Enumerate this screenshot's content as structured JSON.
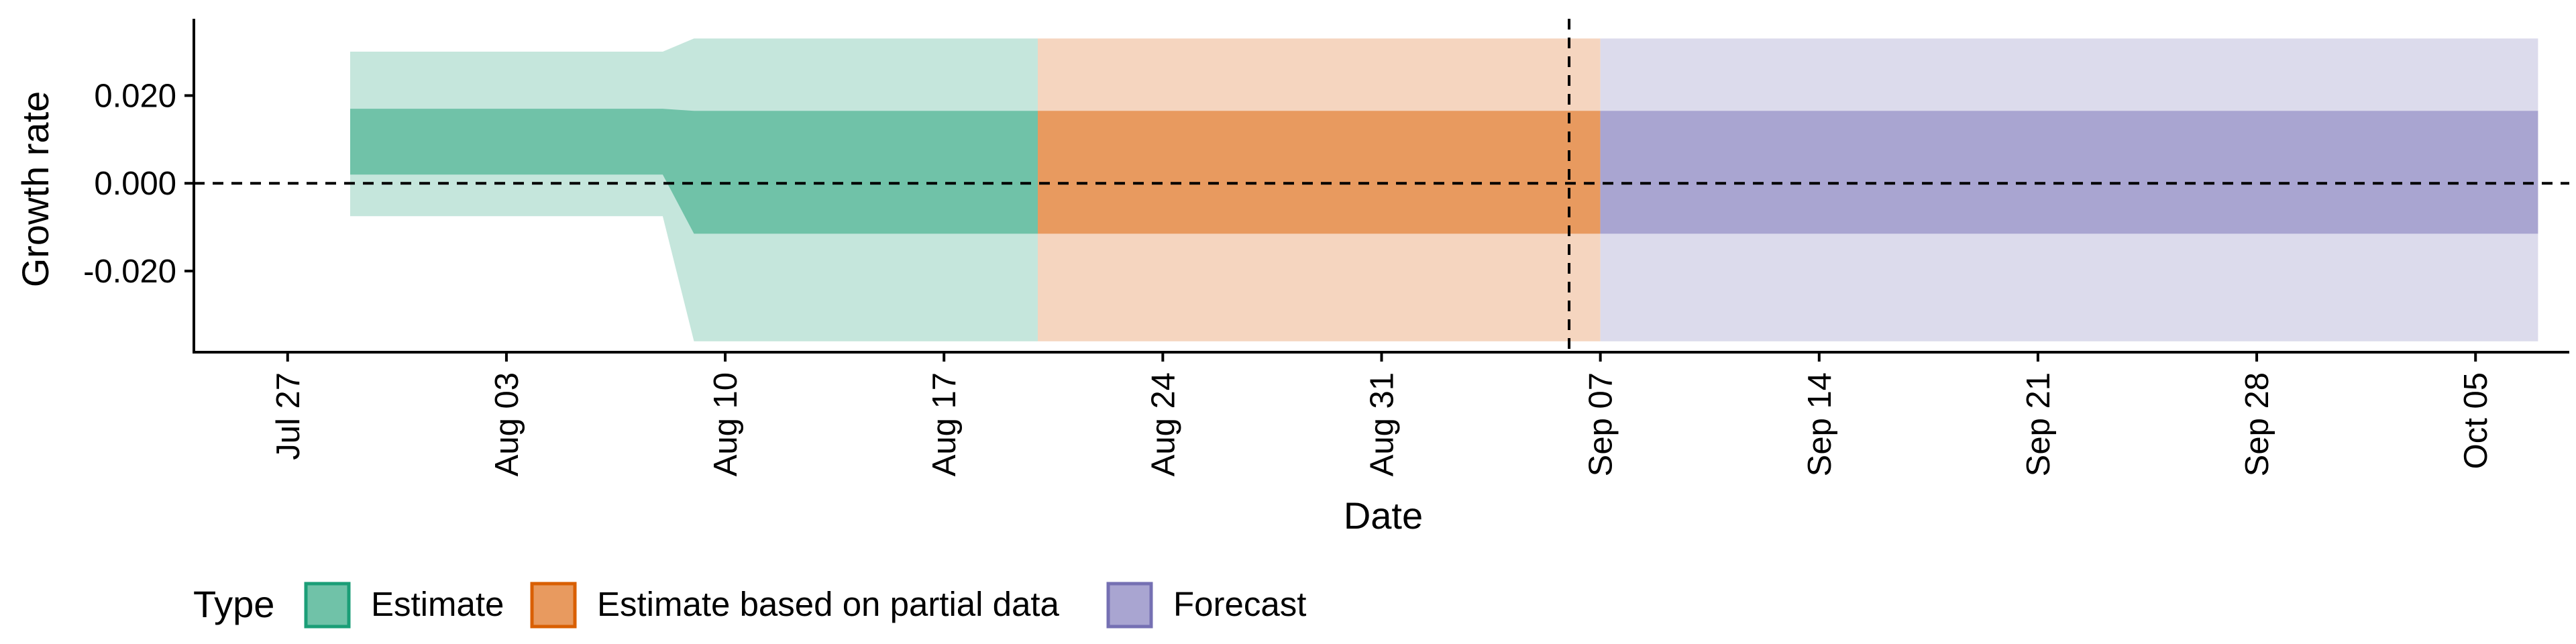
{
  "chart_data": {
    "type": "area",
    "title": "",
    "xlabel": "Date",
    "ylabel": "Growth rate",
    "ylim": [
      -0.0385,
      0.0375
    ],
    "xlim": [
      "2020-07-24",
      "2020-10-08"
    ],
    "y_ticks": [
      -0.02,
      0.0,
      0.02
    ],
    "y_tick_labels": [
      "-0.020",
      "0.000",
      "0.020"
    ],
    "x_ticks": [
      "2020-07-27",
      "2020-08-03",
      "2020-08-10",
      "2020-08-17",
      "2020-08-24",
      "2020-08-31",
      "2020-09-07",
      "2020-09-14",
      "2020-09-21",
      "2020-09-28",
      "2020-10-05"
    ],
    "x_tick_labels": [
      "Jul 27",
      "Aug 03",
      "Aug 10",
      "Aug 17",
      "Aug 24",
      "Aug 31",
      "Sep 07",
      "Sep 14",
      "Sep 21",
      "Sep 28",
      "Oct 05"
    ],
    "grid": false,
    "reference_lines": [
      {
        "axis": "y",
        "value": 0,
        "style": "dashed"
      },
      {
        "axis": "x",
        "value": "2020-09-06",
        "style": "dashed"
      }
    ],
    "legend": {
      "title": "Type",
      "position": "bottom",
      "entries": [
        {
          "label": "Estimate",
          "fill": "#70c2a8",
          "border": "#1b9e77"
        },
        {
          "label": "Estimate based on partial data",
          "fill": "#e89a5f",
          "border": "#d95f02"
        },
        {
          "label": "Forecast",
          "fill": "#a9a5d1",
          "border": "#7570b3"
        }
      ]
    },
    "series": [
      {
        "name": "Estimate",
        "outer_color": "#c5e6dc",
        "inner_color": "#70c2a8",
        "points": [
          {
            "x": "2020-07-29",
            "lower_90": -0.0075,
            "lower_50": 0.002,
            "upper_50": 0.017,
            "upper_90": 0.03
          },
          {
            "x": "2020-08-08",
            "lower_90": -0.0075,
            "lower_50": 0.002,
            "upper_50": 0.017,
            "upper_90": 0.03
          },
          {
            "x": "2020-08-09",
            "lower_90": -0.036,
            "lower_50": -0.0115,
            "upper_50": 0.0165,
            "upper_90": 0.033
          },
          {
            "x": "2020-08-19",
            "lower_90": -0.036,
            "lower_50": -0.0115,
            "upper_50": 0.0165,
            "upper_90": 0.033
          }
        ]
      },
      {
        "name": "Estimate based on partial data",
        "outer_color": "#f5d5bf",
        "inner_color": "#e89a5f",
        "points": [
          {
            "x": "2020-08-20",
            "lower_90": -0.036,
            "lower_50": -0.0115,
            "upper_50": 0.0165,
            "upper_90": 0.033
          },
          {
            "x": "2020-09-06",
            "lower_90": -0.036,
            "lower_50": -0.0115,
            "upper_50": 0.0165,
            "upper_90": 0.033
          }
        ]
      },
      {
        "name": "Forecast",
        "outer_color": "#dcdbec",
        "inner_color": "#a9a5d1",
        "points": [
          {
            "x": "2020-09-07",
            "lower_90": -0.036,
            "lower_50": -0.0115,
            "upper_50": 0.0165,
            "upper_90": 0.033
          },
          {
            "x": "2020-10-06",
            "lower_90": -0.036,
            "lower_50": -0.0115,
            "upper_50": 0.0165,
            "upper_90": 0.033
          }
        ]
      }
    ]
  }
}
